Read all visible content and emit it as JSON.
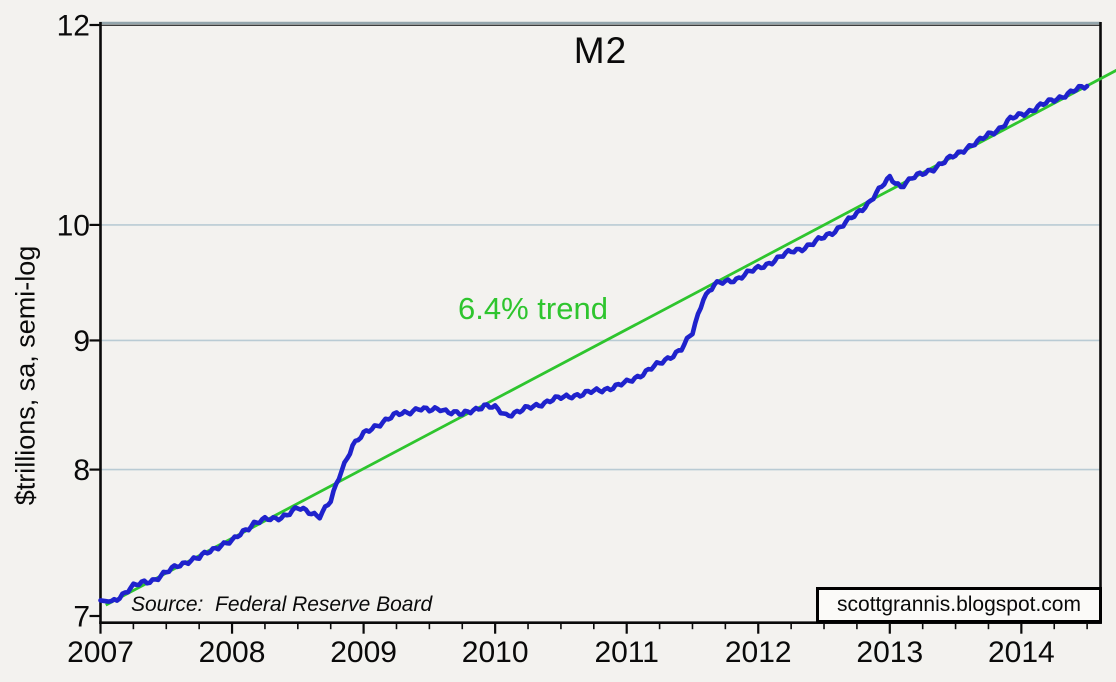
{
  "colors": {
    "background": "#f3f2ef",
    "axis": "#0a0a0a",
    "frame_top_light": "#93a5ac",
    "frame_top_dark": "#3c3c3c",
    "gridline": "#b9cbd4",
    "series_blue": "#1f22cc",
    "trend_green": "#2ec52e",
    "text": "#0a0a0a",
    "watermark_bg": "#fbfaf8"
  },
  "chart_data": {
    "type": "line",
    "title": "M2",
    "xlabel": "",
    "ylabel": "$trillions, sa, semi-log",
    "yscale": "log",
    "xlim": [
      2007,
      2014.61
    ],
    "ylim": [
      7,
      12
    ],
    "grid": "horizontal-only",
    "gridline_values": [
      8,
      9,
      10
    ],
    "x_ticks": [
      {
        "value": 2007,
        "label": "2007"
      },
      {
        "value": 2008,
        "label": "2008"
      },
      {
        "value": 2009,
        "label": "2009"
      },
      {
        "value": 2010,
        "label": "2010"
      },
      {
        "value": 2011,
        "label": "2011"
      },
      {
        "value": 2012,
        "label": "2012"
      },
      {
        "value": 2013,
        "label": "2013"
      },
      {
        "value": 2014,
        "label": "2014"
      }
    ],
    "x_minor_tick_interval": 0.25,
    "y_ticks": [
      {
        "value": 7,
        "label": "7"
      },
      {
        "value": 8,
        "label": "8"
      },
      {
        "value": 9,
        "label": "9"
      },
      {
        "value": 10,
        "label": "10"
      },
      {
        "value": 12,
        "label": "12"
      }
    ],
    "series": [
      {
        "name": "M2 money supply",
        "color": "#1f22cc",
        "line_width": 4.6,
        "x_start": 2007.0,
        "x_step_years": 0.083333,
        "values": [
          7.1,
          7.09,
          7.14,
          7.19,
          7.22,
          7.24,
          7.28,
          7.33,
          7.36,
          7.38,
          7.43,
          7.47,
          7.49,
          7.56,
          7.62,
          7.64,
          7.65,
          7.68,
          7.72,
          7.7,
          7.67,
          7.77,
          8.0,
          8.18,
          8.26,
          8.32,
          8.37,
          8.41,
          8.43,
          8.46,
          8.44,
          8.46,
          8.43,
          8.41,
          8.45,
          8.48,
          8.46,
          8.41,
          8.43,
          8.46,
          8.49,
          8.52,
          8.54,
          8.56,
          8.57,
          8.59,
          8.61,
          8.63,
          8.66,
          8.71,
          8.76,
          8.81,
          8.87,
          8.93,
          9.06,
          9.36,
          9.47,
          9.49,
          9.52,
          9.57,
          9.61,
          9.66,
          9.71,
          9.76,
          9.79,
          9.83,
          9.89,
          9.95,
          10.02,
          10.1,
          10.2,
          10.32,
          10.44,
          10.36,
          10.43,
          10.48,
          10.53,
          10.59,
          10.66,
          10.73,
          10.78,
          10.86,
          10.92,
          11.01,
          11.06,
          11.11,
          11.16,
          11.21,
          11.26,
          11.31,
          11.35
        ]
      }
    ],
    "trend": {
      "label": "6.4% trend",
      "color": "#2ec52e",
      "line_width": 2.8,
      "start": {
        "x": 2007.04,
        "value": 7.07
      },
      "end": {
        "x": 2014.73,
        "value": 11.52
      }
    },
    "annotations": {
      "source": "Source:  Federal Reserve Board",
      "watermark": "scottgrannis.blogspot.com"
    },
    "legend": "none"
  }
}
